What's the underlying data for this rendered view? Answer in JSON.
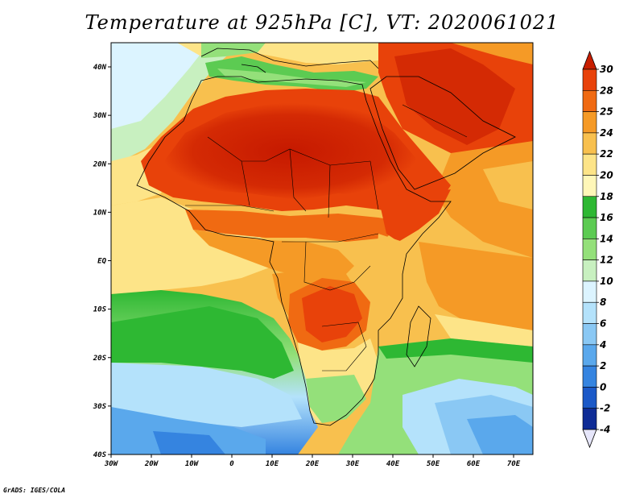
{
  "title": "Temperature at 925hPa [C], VT: 2020061021",
  "credit": "GrADS: IGES/COLA",
  "map": {
    "region": "Africa and Arabian Peninsula",
    "lon_range": [
      -30,
      75
    ],
    "lat_range": [
      -40,
      45
    ],
    "lon_ticks": [
      "30W",
      "20W",
      "10W",
      "0",
      "10E",
      "20E",
      "30E",
      "40E",
      "50E",
      "60E",
      "70E"
    ],
    "lat_ticks": [
      "40N",
      "30N",
      "20N",
      "10N",
      "EQ",
      "10S",
      "20S",
      "30S",
      "40S"
    ],
    "overlays": [
      "coastlines",
      "country-borders"
    ]
  },
  "colorbar": {
    "labels": [
      "30",
      "28",
      "25",
      "24",
      "22",
      "20",
      "18",
      "16",
      "14",
      "12",
      "10",
      "8",
      "6",
      "4",
      "2",
      "0",
      "-2",
      "-4"
    ],
    "colors": [
      "#c81e00",
      "#e8420a",
      "#f06a12",
      "#f59a26",
      "#f8c04e",
      "#fde488",
      "#fff7b8",
      "#2eb833",
      "#5ccb52",
      "#94e07a",
      "#c8f0c0",
      "#dcf4ff",
      "#b4e2fb",
      "#8ac8f4",
      "#5aa8ec",
      "#3584e0",
      "#1b59c8",
      "#0f2c96",
      "#08176c"
    ]
  }
}
